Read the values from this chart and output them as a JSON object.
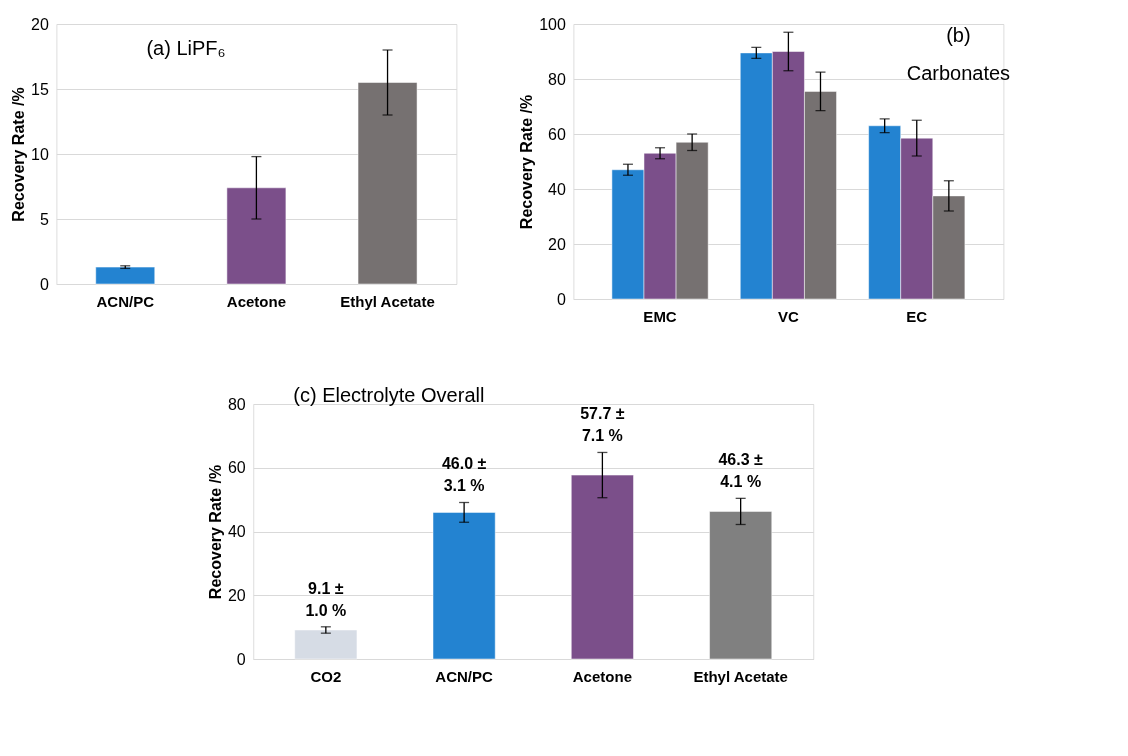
{
  "chart_data": [
    {
      "type": "bar",
      "ylabel": "Recovery Rate /%",
      "annotations": [
        "(a) LiPF₆"
      ],
      "categories": [
        "ACN/PC",
        "Acetone",
        "Ethyl Acetate"
      ],
      "values": [
        1.3,
        7.4,
        15.5
      ],
      "errors": [
        0.1,
        2.4,
        2.5
      ],
      "colors": [
        "#2383d1",
        "#7b4f8a",
        "#767171"
      ],
      "ylim": [
        0,
        20
      ],
      "yticks": [
        0,
        5,
        10,
        15,
        20
      ],
      "grid": "y"
    },
    {
      "type": "bar",
      "ylabel": "Recovery Rate /%",
      "annotations": [
        "(b)",
        "Carbonates"
      ],
      "categories": [
        "EMC",
        "VC",
        "EC"
      ],
      "series": [
        {
          "color": "#2383d1",
          "values": [
            47,
            89.5,
            63
          ],
          "errors": [
            2,
            2,
            2.5
          ]
        },
        {
          "color": "#7b4f8a",
          "values": [
            53,
            90,
            58.5
          ],
          "errors": [
            2,
            7,
            6.5
          ]
        },
        {
          "color": "#767171",
          "values": [
            57,
            75.5,
            37.5
          ],
          "errors": [
            3,
            7,
            5.5
          ]
        }
      ],
      "ylim": [
        0,
        100
      ],
      "yticks": [
        0,
        20,
        40,
        60,
        80,
        100
      ],
      "grid": "y"
    },
    {
      "type": "bar",
      "ylabel": "Recovery Rate /%",
      "annotations": [
        "(c) Electrolyte Overall"
      ],
      "categories": [
        "CO2",
        "ACN/PC",
        "Acetone",
        "Ethyl Acetate"
      ],
      "values": [
        9.1,
        46.0,
        57.7,
        46.3
      ],
      "errors": [
        1.0,
        3.1,
        7.1,
        4.1
      ],
      "value_labels": [
        "9.1 ±\n1.0 %",
        "46.0 ±\n3.1 %",
        "57.7 ±\n7.1 %",
        "46.3 ±\n4.1 %"
      ],
      "colors": [
        "#d6dce5",
        "#2383d1",
        "#7b4f8a",
        "#808080"
      ],
      "ylim": [
        0,
        80
      ],
      "yticks": [
        0,
        20,
        40,
        60,
        80
      ],
      "grid": "y"
    }
  ]
}
